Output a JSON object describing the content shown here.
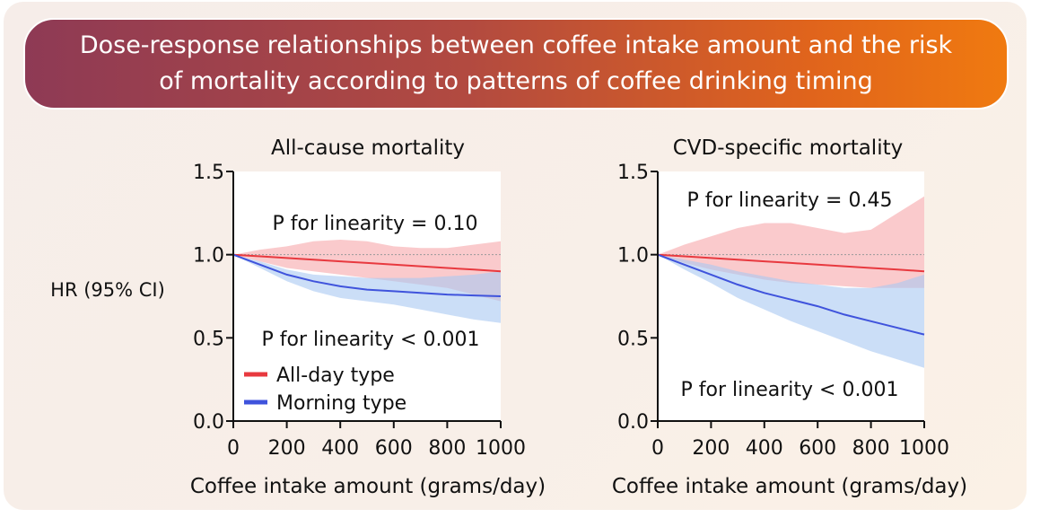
{
  "banner": {
    "title": "Dose-response relationships between coffee intake amount and the risk of mortality according to patterns of coffee drinking timing"
  },
  "colors": {
    "all_day": "#e8393f",
    "morning": "#3f53dc",
    "all_day_band": "#f6a7aa",
    "morning_band": "#a9c8f2"
  },
  "shared": {
    "ylabel": "HR (95% CI)",
    "xlabel": "Coffee intake amount (grams/day)"
  },
  "legend": {
    "all_day": "All-day type",
    "morning": "Morning type"
  },
  "chart_data": [
    {
      "type": "line",
      "title": "All-cause mortality",
      "xlabel": "Coffee intake amount (grams/day)",
      "ylabel": "HR (95% CI)",
      "xlim": [
        0,
        1000
      ],
      "ylim": [
        0,
        1.5
      ],
      "x_ticks": [
        "0",
        "200",
        "400",
        "600",
        "800",
        "1000"
      ],
      "y_ticks": [
        "0.0",
        "0.5",
        "1.0",
        "1.5"
      ],
      "reference_line": 1.0,
      "annotations": {
        "all_day": "P for linearity = 0.10",
        "morning": "P for linearity < 0.001"
      },
      "series": [
        {
          "name": "All-day type",
          "x": [
            0,
            100,
            200,
            300,
            400,
            500,
            600,
            700,
            800,
            900,
            1000
          ],
          "values": [
            1.0,
            0.99,
            0.98,
            0.97,
            0.96,
            0.95,
            0.94,
            0.93,
            0.92,
            0.91,
            0.9
          ],
          "lower": [
            1.0,
            0.96,
            0.92,
            0.9,
            0.88,
            0.86,
            0.84,
            0.82,
            0.8,
            0.76,
            0.72
          ],
          "upper": [
            1.0,
            1.03,
            1.05,
            1.08,
            1.09,
            1.08,
            1.05,
            1.04,
            1.04,
            1.06,
            1.08
          ]
        },
        {
          "name": "Morning type",
          "x": [
            0,
            100,
            200,
            300,
            400,
            500,
            600,
            700,
            800,
            900,
            1000
          ],
          "values": [
            1.0,
            0.94,
            0.88,
            0.84,
            0.81,
            0.79,
            0.78,
            0.77,
            0.76,
            0.755,
            0.75
          ],
          "lower": [
            1.0,
            0.92,
            0.84,
            0.78,
            0.74,
            0.72,
            0.7,
            0.67,
            0.64,
            0.61,
            0.59
          ],
          "upper": [
            1.0,
            0.96,
            0.91,
            0.88,
            0.87,
            0.86,
            0.86,
            0.86,
            0.87,
            0.88,
            0.9
          ]
        }
      ]
    },
    {
      "type": "line",
      "title": "CVD-specific mortality",
      "xlabel": "Coffee intake amount (grams/day)",
      "ylabel": "",
      "xlim": [
        0,
        1000
      ],
      "ylim": [
        0,
        1.5
      ],
      "x_ticks": [
        "0",
        "200",
        "400",
        "600",
        "800",
        "1000"
      ],
      "y_ticks": [
        "0.0",
        "0.5",
        "1.0",
        "1.5"
      ],
      "reference_line": 1.0,
      "annotations": {
        "all_day": "P for linearity = 0.45",
        "morning": "P for linearity < 0.001"
      },
      "series": [
        {
          "name": "All-day type",
          "x": [
            0,
            100,
            200,
            300,
            400,
            500,
            600,
            700,
            800,
            900,
            1000
          ],
          "values": [
            1.0,
            0.99,
            0.98,
            0.97,
            0.96,
            0.95,
            0.94,
            0.93,
            0.92,
            0.91,
            0.9
          ],
          "lower": [
            1.0,
            0.95,
            0.91,
            0.88,
            0.85,
            0.83,
            0.82,
            0.81,
            0.8,
            0.8,
            0.8
          ],
          "upper": [
            1.0,
            1.06,
            1.11,
            1.16,
            1.19,
            1.19,
            1.16,
            1.13,
            1.15,
            1.25,
            1.35
          ]
        },
        {
          "name": "Morning type",
          "x": [
            0,
            100,
            200,
            300,
            400,
            500,
            600,
            700,
            800,
            900,
            1000
          ],
          "values": [
            1.0,
            0.94,
            0.88,
            0.82,
            0.77,
            0.73,
            0.69,
            0.64,
            0.6,
            0.56,
            0.52
          ],
          "lower": [
            1.0,
            0.91,
            0.83,
            0.74,
            0.67,
            0.6,
            0.54,
            0.48,
            0.42,
            0.37,
            0.32
          ],
          "upper": [
            1.0,
            0.97,
            0.94,
            0.9,
            0.87,
            0.84,
            0.82,
            0.8,
            0.8,
            0.83,
            0.88
          ]
        }
      ]
    }
  ]
}
